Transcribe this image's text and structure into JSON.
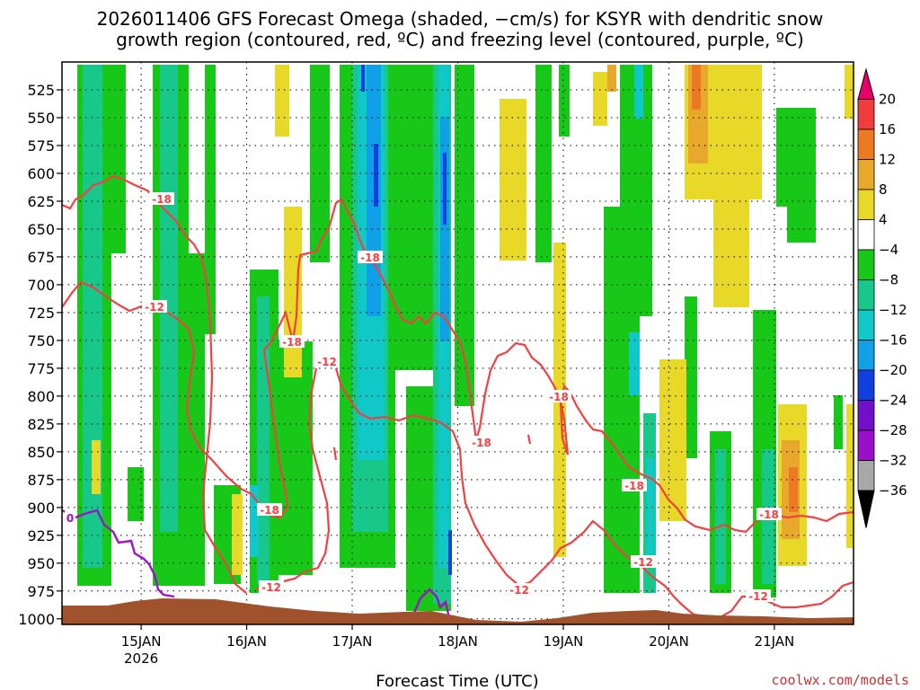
{
  "chart_data": {
    "type": "heatmap",
    "title_lines": [
      "2026011406 GFS Forecast Omega (shaded, −cm/s) for KSYR with dendritic snow",
      "growth region (contoured, red, ºC) and freezing level (contoured, purple, ºC)"
    ],
    "xlabel": "Forecast Time (UTC)",
    "ylabel": "",
    "credit": "coolwx.com/models",
    "x_ticks": [
      {
        "t": 18,
        "label": "15JAN",
        "sub": "2026"
      },
      {
        "t": 42,
        "label": "16JAN",
        "sub": ""
      },
      {
        "t": 66,
        "label": "17JAN",
        "sub": ""
      },
      {
        "t": 90,
        "label": "18JAN",
        "sub": ""
      },
      {
        "t": 114,
        "label": "19JAN",
        "sub": ""
      },
      {
        "t": 138,
        "label": "20JAN",
        "sub": ""
      },
      {
        "t": 162,
        "label": "21JAN",
        "sub": ""
      }
    ],
    "x_range_hours": [
      0,
      180
    ],
    "y_levels": [
      525,
      550,
      575,
      600,
      625,
      650,
      675,
      700,
      725,
      750,
      775,
      800,
      825,
      850,
      875,
      900,
      925,
      950,
      975,
      1000
    ],
    "y_range_hpa": [
      500,
      1005
    ],
    "grid": true,
    "colorbar": {
      "ticks": [
        "20",
        "16",
        "12",
        "8",
        "4",
        "−4",
        "−8",
        "−12",
        "−16",
        "−20",
        "−24",
        "−28",
        "−32",
        "−36"
      ],
      "colors": [
        "#e8006a",
        "#f23c3c",
        "#ec7a22",
        "#e8a82c",
        "#e8d828",
        "#ffffff",
        "#18c818",
        "#18c88a",
        "#10c8c8",
        "#10a0e8",
        "#1040e0",
        "#7010c8",
        "#9a10c8",
        "#a8a8a8",
        "#000000"
      ]
    },
    "contour_labels": {
      "dgz": [
        "-18",
        "-12"
      ],
      "freezing": [
        "0"
      ]
    },
    "colors": {
      "dgz_contour": "#f24040",
      "freezing_contour": "#a010c8",
      "terrain": "#a0522d",
      "grid": "#000000",
      "credit": "#c83232"
    }
  }
}
